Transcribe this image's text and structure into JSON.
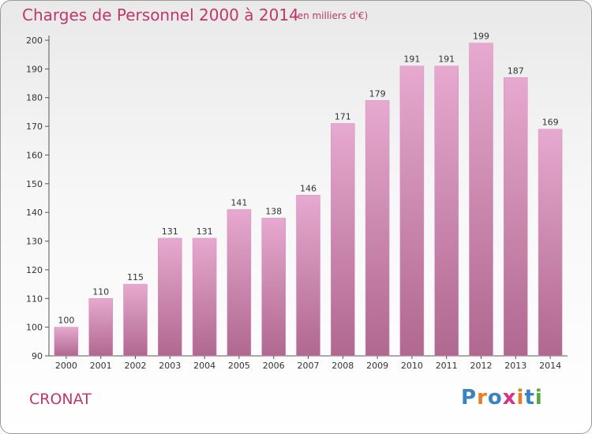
{
  "header": {
    "title": "Charges de Personnel 2000 à 2014",
    "subtitle": "(en milliers d'€)"
  },
  "footer": {
    "place": "CRONAT",
    "logo": "Proxiti"
  },
  "colors": {
    "title": "#c2376a",
    "bar_top": "#e6a9cf",
    "bar_bottom": "#b0688f",
    "logo": [
      "#3b82c4",
      "#e67e22",
      "#3b82c4",
      "#d63384",
      "#e67e22",
      "#3b82c4",
      "#59a83a"
    ]
  },
  "chart_data": {
    "type": "bar",
    "title": "Charges de Personnel 2000 à 2014",
    "subtitle": "(en milliers d'€)",
    "categories": [
      "2000",
      "2001",
      "2002",
      "2003",
      "2004",
      "2005",
      "2006",
      "2007",
      "2008",
      "2009",
      "2010",
      "2011",
      "2012",
      "2013",
      "2014"
    ],
    "values": [
      100,
      110,
      115,
      131,
      131,
      141,
      138,
      146,
      171,
      179,
      191,
      191,
      199,
      187,
      169
    ],
    "data_labels": [
      "100",
      "110",
      "115",
      "131",
      "131",
      "141",
      "138",
      "146",
      "171",
      "179",
      "191",
      "191",
      "199",
      "187",
      "169"
    ],
    "ylim": [
      90,
      200
    ],
    "yticks": [
      90,
      100,
      110,
      120,
      130,
      140,
      150,
      160,
      170,
      180,
      190,
      200
    ],
    "ytick_labels": [
      "90",
      "100",
      "110",
      "120",
      "130",
      "140",
      "150",
      "160",
      "170",
      "180",
      "190",
      "200"
    ],
    "grid": false,
    "xlabel": "",
    "ylabel": ""
  }
}
